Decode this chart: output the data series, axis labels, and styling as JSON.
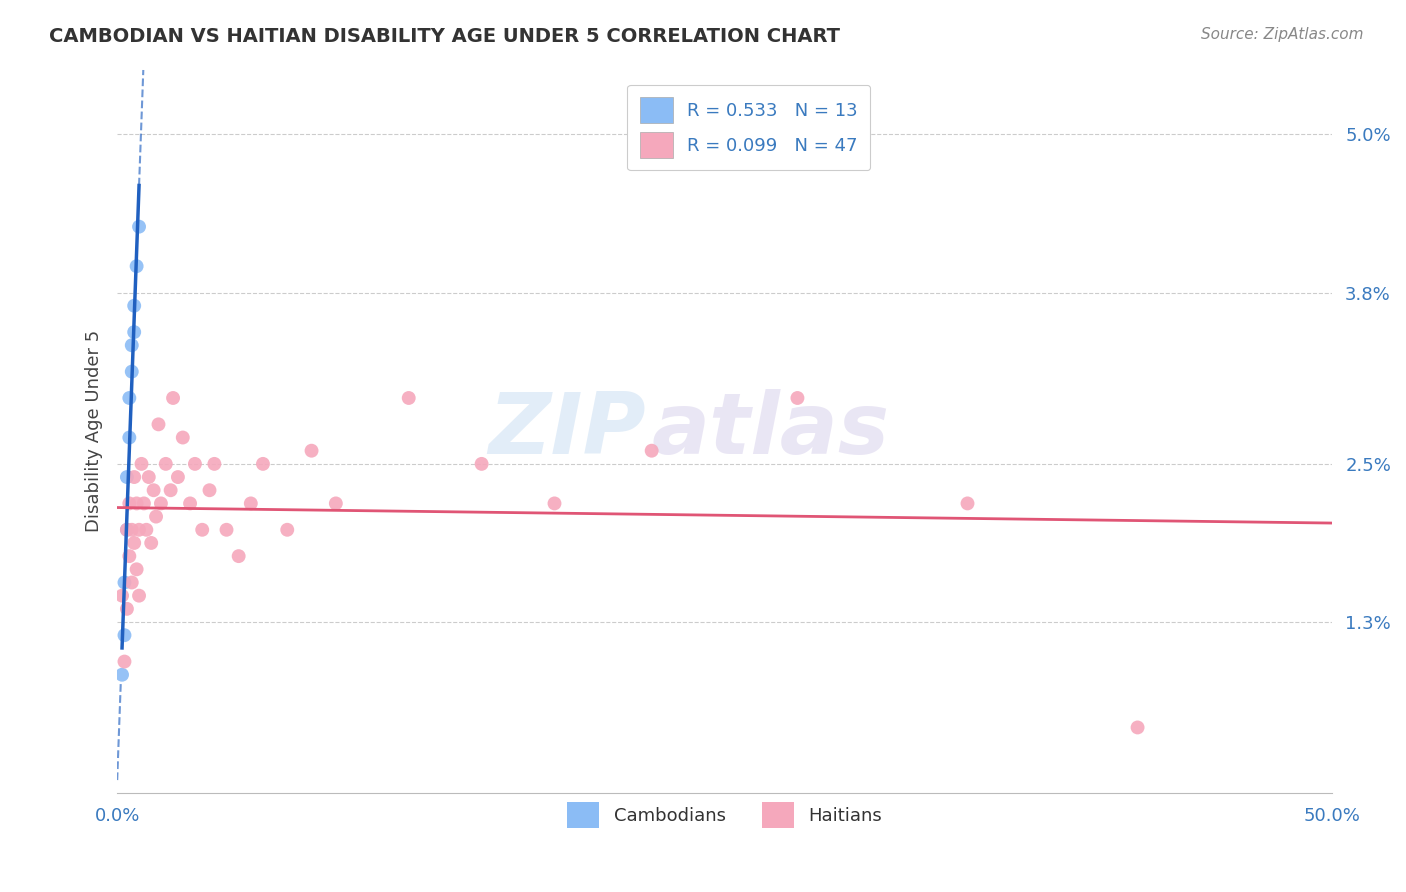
{
  "title": "CAMBODIAN VS HAITIAN DISABILITY AGE UNDER 5 CORRELATION CHART",
  "source": "Source: ZipAtlas.com",
  "ylabel": "Disability Age Under 5",
  "xlim": [
    0.0,
    0.5
  ],
  "ylim": [
    0.0,
    0.055
  ],
  "background_color": "#ffffff",
  "watermark_zip": "ZIP",
  "watermark_atlas": "atlas",
  "cambodian_color": "#8bbcf5",
  "haitian_color": "#f5a8bc",
  "cambodian_line_color": "#2060c0",
  "haitian_line_color": "#e05575",
  "R_cambodian": 0.533,
  "N_cambodian": 13,
  "R_haitian": 0.099,
  "N_haitian": 47,
  "cam_x": [
    0.002,
    0.003,
    0.003,
    0.004,
    0.004,
    0.005,
    0.005,
    0.006,
    0.006,
    0.007,
    0.007,
    0.008,
    0.009
  ],
  "cam_y": [
    0.009,
    0.012,
    0.016,
    0.02,
    0.024,
    0.027,
    0.03,
    0.032,
    0.034,
    0.035,
    0.037,
    0.04,
    0.043
  ],
  "hai_x": [
    0.002,
    0.003,
    0.004,
    0.004,
    0.005,
    0.005,
    0.006,
    0.006,
    0.007,
    0.007,
    0.008,
    0.008,
    0.009,
    0.009,
    0.01,
    0.011,
    0.012,
    0.013,
    0.014,
    0.015,
    0.016,
    0.017,
    0.018,
    0.02,
    0.022,
    0.023,
    0.025,
    0.027,
    0.03,
    0.032,
    0.035,
    0.038,
    0.04,
    0.045,
    0.05,
    0.055,
    0.06,
    0.07,
    0.08,
    0.09,
    0.12,
    0.15,
    0.18,
    0.22,
    0.28,
    0.35,
    0.42
  ],
  "hai_y": [
    0.015,
    0.01,
    0.02,
    0.014,
    0.018,
    0.022,
    0.02,
    0.016,
    0.019,
    0.024,
    0.017,
    0.022,
    0.015,
    0.02,
    0.025,
    0.022,
    0.02,
    0.024,
    0.019,
    0.023,
    0.021,
    0.028,
    0.022,
    0.025,
    0.023,
    0.03,
    0.024,
    0.027,
    0.022,
    0.025,
    0.02,
    0.023,
    0.025,
    0.02,
    0.018,
    0.022,
    0.025,
    0.02,
    0.026,
    0.022,
    0.03,
    0.025,
    0.022,
    0.026,
    0.03,
    0.022,
    0.005
  ],
  "ytick_pos": [
    0.013,
    0.025,
    0.038,
    0.05
  ],
  "ytick_labels": [
    "1.3%",
    "2.5%",
    "3.8%",
    "5.0%"
  ]
}
